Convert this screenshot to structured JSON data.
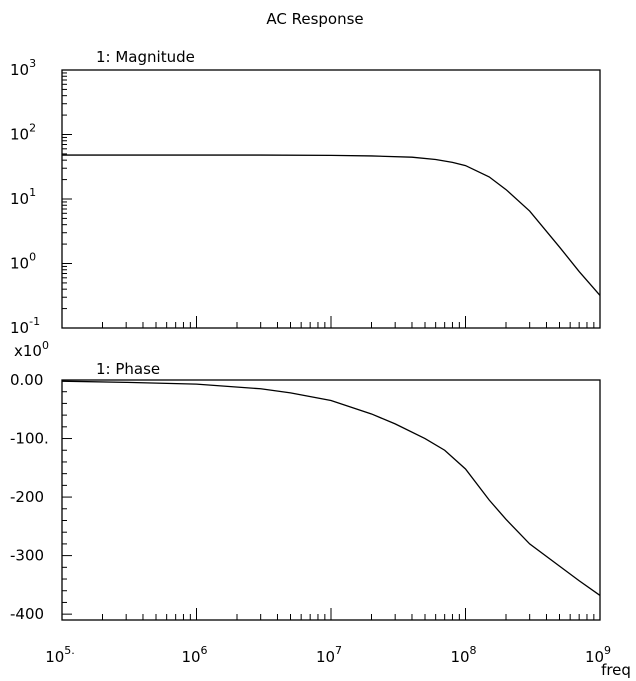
{
  "title": "AC Response",
  "chart_data": [
    {
      "type": "line",
      "panel_label": "1: Magnitude",
      "x_scale": "log",
      "y_scale": "log",
      "xlim": [
        100000,
        1000000000
      ],
      "ylim": [
        0.1,
        1000
      ],
      "y_ticks": [
        {
          "value": 1000,
          "base": "10",
          "exp": "3"
        },
        {
          "value": 100,
          "base": "10",
          "exp": "2"
        },
        {
          "value": 10,
          "base": "10",
          "exp": "1"
        },
        {
          "value": 1,
          "base": "10",
          "exp": "0"
        },
        {
          "value": 0.1,
          "base": "10",
          "exp": "-1"
        }
      ],
      "series": [
        {
          "x": [
            100000,
            1000000,
            3000000,
            10000000,
            20000000,
            40000000,
            60000000,
            80000000,
            100000000,
            150000000,
            200000000,
            300000000,
            500000000,
            700000000,
            1000000000
          ],
          "y": [
            48,
            48,
            48,
            47.5,
            46.5,
            44.5,
            41,
            37,
            33,
            22,
            14,
            6.5,
            1.8,
            0.75,
            0.32
          ]
        }
      ]
    },
    {
      "type": "line",
      "panel_label": "1: Phase",
      "x_scale": "log",
      "y_scale": "linear",
      "xlim": [
        100000,
        1000000000
      ],
      "ylim": [
        -410,
        0
      ],
      "y_multiplier": {
        "text": "x10",
        "exp": "0"
      },
      "y_ticks": [
        {
          "value": 0,
          "label": "0.00"
        },
        {
          "value": -100,
          "label": "-100."
        },
        {
          "value": -200,
          "label": "-200"
        },
        {
          "value": -300,
          "label": "-300"
        },
        {
          "value": -400,
          "label": "-400"
        }
      ],
      "x_ticks": [
        {
          "value": 100000,
          "base": "10",
          "exp": "5."
        },
        {
          "value": 1000000,
          "base": "10",
          "exp": "6"
        },
        {
          "value": 10000000,
          "base": "10",
          "exp": "7"
        },
        {
          "value": 100000000,
          "base": "10",
          "exp": "8"
        },
        {
          "value": 1000000000,
          "base": "10",
          "exp": "9"
        }
      ],
      "x_label": "freq",
      "series": [
        {
          "x": [
            100000,
            300000,
            1000000,
            3000000,
            5000000,
            10000000,
            20000000,
            30000000,
            50000000,
            70000000,
            100000000,
            150000000,
            200000000,
            300000000,
            500000000,
            700000000,
            1000000000
          ],
          "y": [
            -2,
            -4,
            -7,
            -15,
            -22,
            -35,
            -58,
            -75,
            -100,
            -120,
            -152,
            -205,
            -238,
            -280,
            -318,
            -343,
            -368
          ]
        }
      ]
    }
  ]
}
